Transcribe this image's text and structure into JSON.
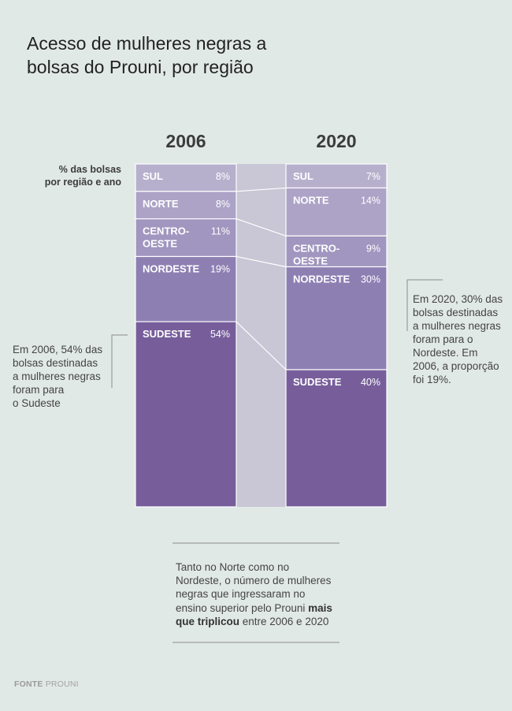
{
  "title": {
    "line1": "Acesso de mulheres negras a",
    "line2": "bolsas do Prouni, por região"
  },
  "units_label": {
    "line1": "% das bolsas",
    "line2": "por região e ano"
  },
  "chart_data": {
    "type": "bar",
    "subtype": "stacked-100-percent",
    "categories": [
      "2006",
      "2020"
    ],
    "series": [
      {
        "name": "SUL",
        "label_lines": [
          "SUL"
        ],
        "values": [
          8,
          7
        ],
        "value_labels": [
          "8%",
          "7%"
        ],
        "color": "#b7b0cd"
      },
      {
        "name": "NORTE",
        "label_lines": [
          "NORTE"
        ],
        "values": [
          8,
          14
        ],
        "value_labels": [
          "8%",
          "14%"
        ],
        "color": "#aca3c7"
      },
      {
        "name": "CENTRO-OESTE",
        "label_lines": [
          "CENTRO-",
          "OESTE"
        ],
        "values": [
          11,
          9
        ],
        "value_labels": [
          "11%",
          "9%"
        ],
        "color": "#a096bf"
      },
      {
        "name": "NORDESTE",
        "label_lines": [
          "NORDESTE"
        ],
        "values": [
          19,
          30
        ],
        "value_labels": [
          "19%",
          "30%"
        ],
        "color": "#8e7fb3"
      },
      {
        "name": "SUDESTE",
        "label_lines": [
          "SUDESTE"
        ],
        "values": [
          54,
          40
        ],
        "value_labels": [
          "54%",
          "40%"
        ],
        "color": "#775e9b"
      }
    ],
    "ylim": [
      0,
      100
    ],
    "connector_color": "#c9c6d5"
  },
  "notes": {
    "left": [
      "Em 2006, 54% das",
      "bolsas destinadas",
      "a mulheres negras",
      "foram para",
      "o Sudeste"
    ],
    "right": [
      "Em 2020, 30% das",
      "bolsas destinadas",
      "a mulheres negras",
      "foram para o",
      "Nordeste. Em",
      "2006, a proporção",
      "foi 19%."
    ]
  },
  "footnote": {
    "line1": "Tanto no Norte como no",
    "line2": "Nordeste, o número de mulheres",
    "line3": "negras que ingressaram no",
    "line4_plain": "ensino superior pelo Prouni ",
    "line4_bold": "mais",
    "line5_bold": "que triplicou",
    "line5_plain": " entre 2006 e 2020"
  },
  "source": {
    "label": "FONTE",
    "name": "PROUNI"
  }
}
